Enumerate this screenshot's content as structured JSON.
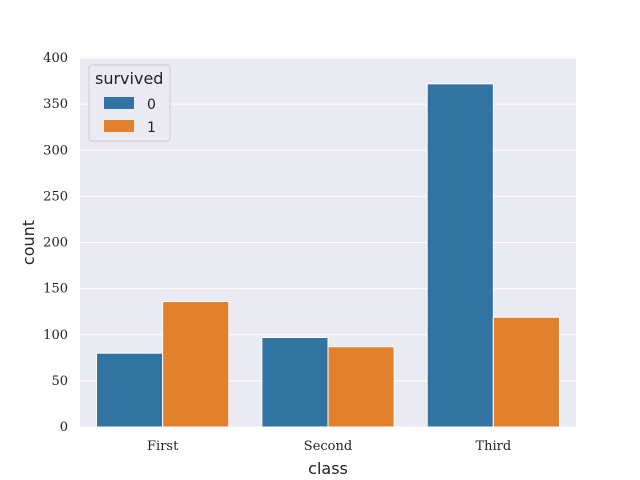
{
  "chart_data": {
    "type": "bar",
    "title": "",
    "xlabel": "class",
    "ylabel": "count",
    "categories": [
      "First",
      "Second",
      "Third"
    ],
    "series": [
      {
        "name": "0",
        "color": "#3274a1",
        "values": [
          80,
          97,
          372
        ]
      },
      {
        "name": "1",
        "color": "#e1812c",
        "values": [
          136,
          87,
          119
        ]
      }
    ],
    "ylim": [
      0,
      400
    ],
    "yticks": [
      0,
      50,
      100,
      150,
      200,
      250,
      300,
      350,
      400
    ],
    "grid": true,
    "plot_background": "#eaeaf2",
    "legend": {
      "title": "survived",
      "placement": "top-left"
    }
  }
}
